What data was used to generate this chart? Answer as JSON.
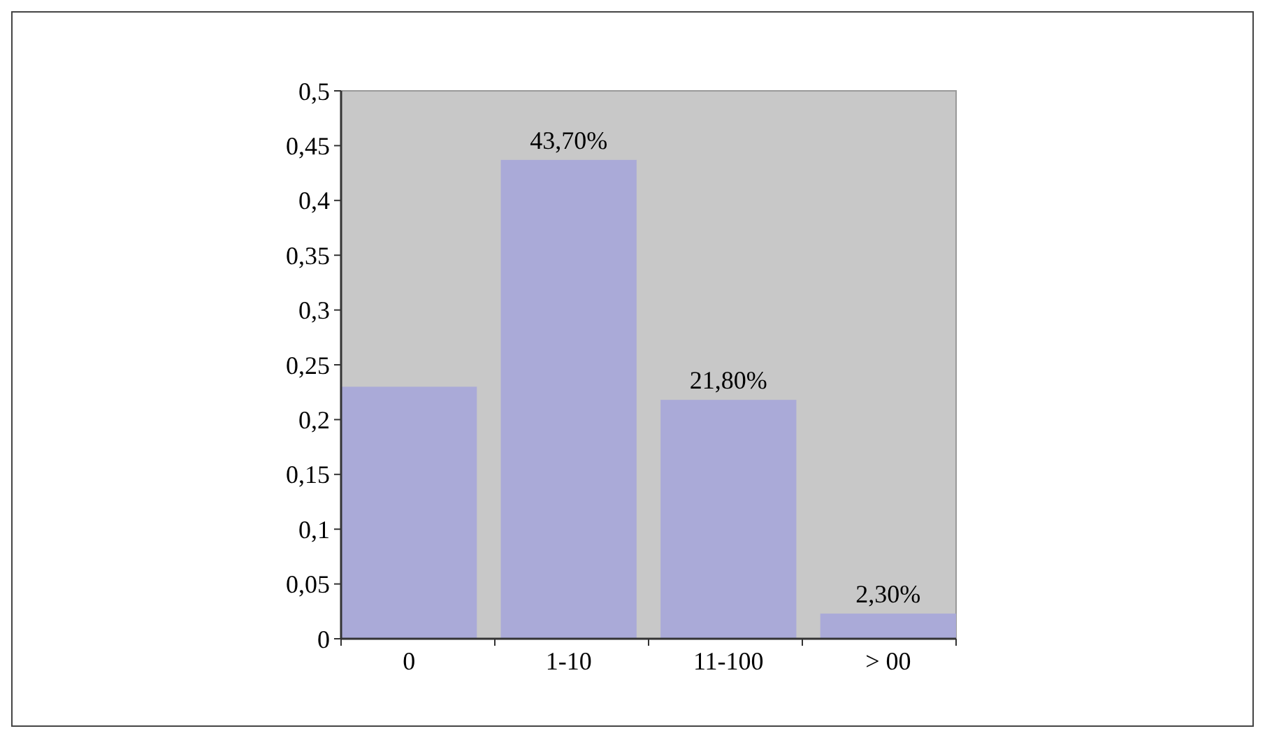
{
  "chart_data": {
    "type": "bar",
    "categories": [
      "0",
      "1-10",
      "11-100",
      "> 00"
    ],
    "values": [
      0.23,
      0.437,
      0.218,
      0.023
    ],
    "value_labels": [
      null,
      "43,70%",
      "21,80%",
      "2,30%"
    ],
    "color": "#aaaad8",
    "ylim": [
      0,
      0.5
    ],
    "yticks": [
      0,
      {
        "value": 0.05,
        "label": "0,05"
      },
      {
        "value": 0.1,
        "label": "0,1"
      },
      {
        "value": 0.15,
        "label": "0,15"
      },
      {
        "value": 0.2,
        "label": "0,2"
      },
      {
        "value": 0.25,
        "label": "0,25"
      },
      {
        "value": 0.3,
        "label": "0,3"
      },
      {
        "value": 0.35,
        "label": "0,35"
      },
      {
        "value": 0.4,
        "label": "0,4"
      },
      {
        "value": 0.45,
        "label": "0,45"
      },
      {
        "value": 0.5,
        "label": "0,5"
      }
    ],
    "grid": false
  }
}
